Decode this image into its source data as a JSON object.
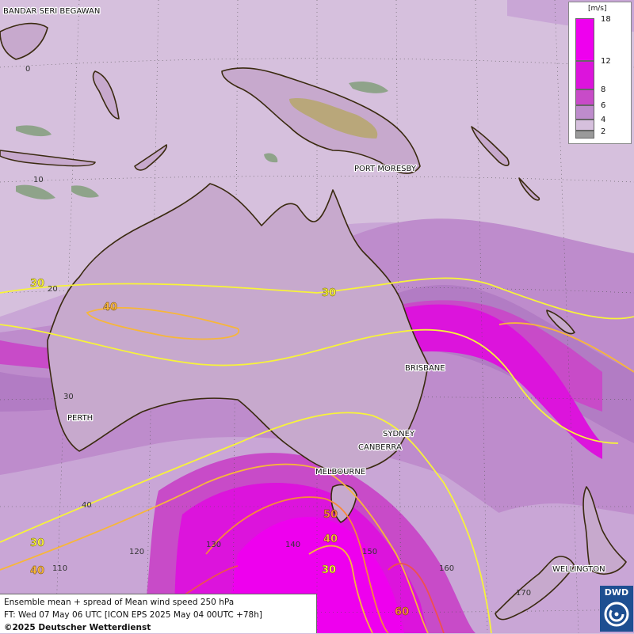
{
  "legend": {
    "unit": "[m/s]",
    "classes": [
      {
        "value": "18",
        "color": "#ee00ee"
      },
      {
        "value": "12",
        "color": "#dc14dc"
      },
      {
        "value": "8",
        "color": "#c84bc8"
      },
      {
        "value": "6",
        "color": "#be8ccc"
      },
      {
        "value": "4",
        "color": "#d6c0dd"
      },
      {
        "value": "2",
        "color": "#9a9a9a"
      }
    ]
  },
  "cities": {
    "bandar_seri_begawan": "BANDAR SERI BEGAWAN",
    "port_moresby": "PORT MORESBY",
    "brisbane": "BRISBANE",
    "sydney": "SYDNEY",
    "canberra": "CANBERRA",
    "melbourne": "MELBOURNE",
    "perth": "PERTH",
    "wellington": "WELLINGTON"
  },
  "grid_labels": {
    "lat_0": "0",
    "lat_10": "10",
    "lat_20": "20",
    "lat_30": "30",
    "lat_40": "40",
    "lon_110": "110",
    "lon_120": "120",
    "lon_130": "130",
    "lon_140": "140",
    "lon_150": "150",
    "lon_160": "160",
    "lon_170": "170"
  },
  "contour_labels": {
    "c30_north_left": "30",
    "c30_north_mid": "30",
    "c40_west": "40",
    "c30_south_left": "30",
    "c40_south_left": "40",
    "c50": "50",
    "c40_tas": "40",
    "c30_south": "30",
    "c60": "60"
  },
  "contour_colors": {
    "c30": "#f7f33a",
    "c40": "#f7b63a",
    "c50": "#f7883a",
    "c60": "#ee5050"
  },
  "footer": {
    "line1": "Ensemble mean + spread of Mean wind speed 250 hPa",
    "line2": "FT: Wed 07 May 06 UTC [ICON EPS 2025 May 04 00UTC +78h]",
    "copyright": "©2025 Deutscher Wetterdienst"
  },
  "logo": {
    "text": "DWD"
  }
}
